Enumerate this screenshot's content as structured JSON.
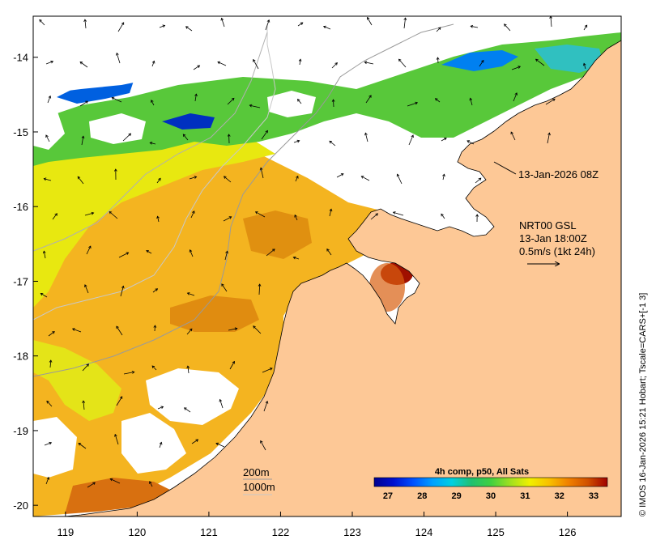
{
  "map": {
    "lon_range": [
      118.55,
      126.75
    ],
    "lat_range": [
      -20.15,
      -13.45
    ],
    "lon_ticks": [
      119,
      120,
      121,
      122,
      123,
      124,
      125,
      126
    ],
    "lat_ticks": [
      -14,
      -15,
      -16,
      -17,
      -18,
      -19,
      -20
    ],
    "colors": {
      "land": "#fdc896",
      "no_data": "#ffffff",
      "coast": "#000000",
      "isobath": "#9a9a9a"
    }
  },
  "annotations": {
    "pass_time": "13-Jan-2026 08Z",
    "current_source": "NRT00 GSL",
    "current_time": "13-Jan 18:00Z",
    "current_scale": "0.5m/s (1kt 24h)",
    "depth_200": "200m",
    "depth_1000": "1000m"
  },
  "colorbar": {
    "title": "4h comp, p50, All Sats",
    "min": 26.6,
    "max": 33.4,
    "ticks": [
      27,
      28,
      29,
      30,
      31,
      32,
      33
    ],
    "stops": [
      "#000090",
      "#0010d0",
      "#0050ff",
      "#00a0ff",
      "#00d0e0",
      "#20c070",
      "#40d040",
      "#a0e020",
      "#f0f000",
      "#f8c000",
      "#f08000",
      "#d05000",
      "#a00000"
    ]
  },
  "credit": "© IMOS 16-Jan-2026 15:21 Hobart; Tscale=CARS+[-1 3]"
}
